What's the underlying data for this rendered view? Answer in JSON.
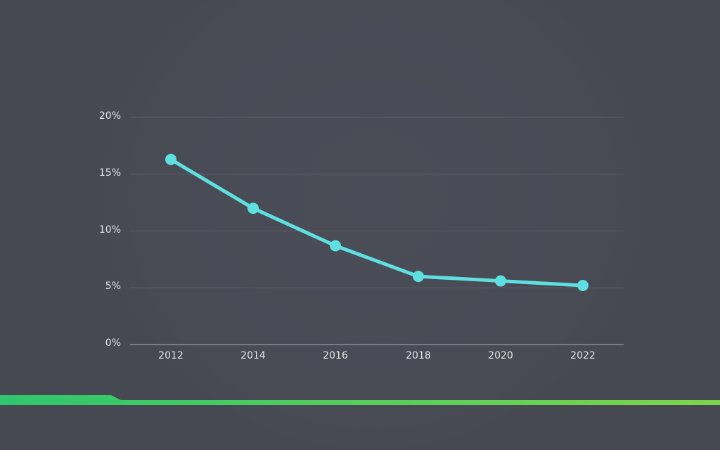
{
  "chart_data": {
    "type": "line",
    "title": "",
    "xlabel": "",
    "ylabel": "",
    "categories": [
      "2012",
      "2014",
      "2016",
      "2018",
      "2020",
      "2022"
    ],
    "series": [
      {
        "name": "",
        "values": [
          16.3,
          12.0,
          8.7,
          6.0,
          5.6,
          5.2
        ],
        "color": "#5fe0e0"
      }
    ],
    "y_ticks": [
      "0%",
      "5%",
      "10%",
      "15%",
      "20%"
    ],
    "ylim": [
      0,
      20
    ],
    "grid": true,
    "legend": null
  },
  "colors": {
    "background": "#464852",
    "line": "#5fe0e0",
    "gridline": "#5b5d66",
    "axis": "#7a7c84",
    "strip_left": "#2ec76e",
    "strip_right": "#7dd44a"
  }
}
